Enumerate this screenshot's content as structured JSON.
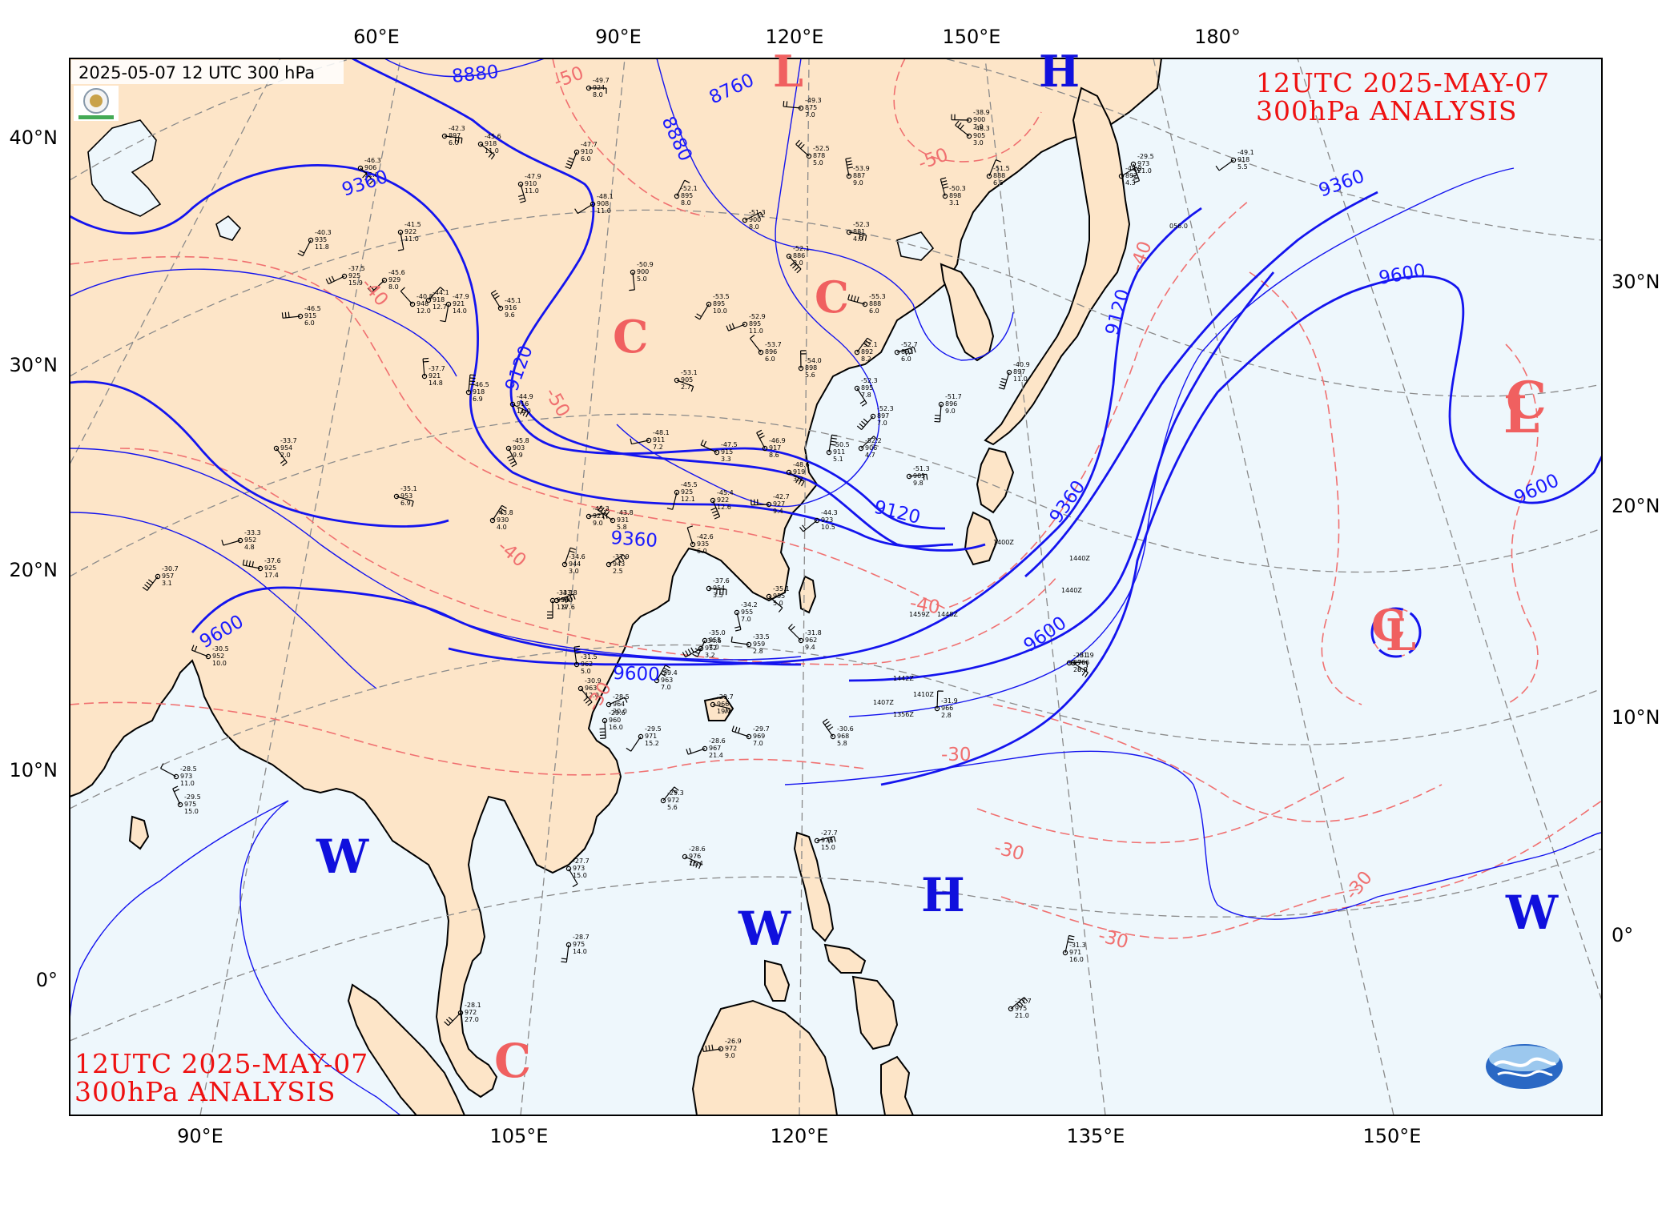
{
  "header": {
    "caption": "2025-05-07 12 UTC 300 hPa",
    "title_top_line1": "12UTC   2025-MAY-07",
    "title_top_line2": "300hPa ANALYSIS",
    "title_bottom_line1": "12UTC  2025-MAY-07",
    "title_bottom_line2": "300hPa ANALYSIS"
  },
  "grid_labels": {
    "top": [
      "60°E",
      "90°E",
      "120°E",
      "150°E",
      "180°"
    ],
    "bottom": [
      "90°E",
      "105°E",
      "120°E",
      "135°E",
      "150°E"
    ],
    "left": [
      "40°N",
      "30°N",
      "20°N",
      "10°N",
      "0°"
    ],
    "right": [
      "30°N",
      "20°N",
      "10°N",
      "0°"
    ]
  },
  "height_contour_labels": [
    "8880",
    "8880",
    "8760",
    "9360",
    "9360",
    "9360",
    "9120",
    "9120",
    "9120",
    "9600",
    "9600",
    "9600",
    "9600",
    "9600",
    "9360",
    "9600"
  ],
  "temperature_contour_labels": [
    "-50",
    "-50",
    "-50",
    "-40",
    "-40",
    "-40",
    "-40",
    "-30",
    "-30",
    "-30",
    "-30",
    "-30"
  ],
  "pressure_systems": [
    {
      "letter": "L",
      "color": "#f06060"
    },
    {
      "letter": "H",
      "color": "#1010dd"
    },
    {
      "letter": "C",
      "color": "#f06060"
    },
    {
      "letter": "C",
      "color": "#f06060"
    },
    {
      "letter": "L",
      "color": "#f06060"
    },
    {
      "letter": "C",
      "color": "#f06060"
    },
    {
      "letter": "C",
      "color": "#f06060"
    },
    {
      "letter": "L",
      "color": "#f06060"
    },
    {
      "letter": "W",
      "color": "#1010dd"
    },
    {
      "letter": "H",
      "color": "#1010dd"
    },
    {
      "letter": "W",
      "color": "#1010dd"
    },
    {
      "letter": "W",
      "color": "#1010dd"
    },
    {
      "letter": "C",
      "color": "#f06060"
    }
  ],
  "stations": [
    {
      "t": "-49.7",
      "h": "924",
      "w": "8.0"
    },
    {
      "t": "-45.6",
      "h": "918",
      "w": "11.0"
    },
    {
      "t": "-47.9",
      "h": "910",
      "w": "11.0"
    },
    {
      "t": "-47.7",
      "h": "910",
      "w": "6.0"
    },
    {
      "t": "-48.1",
      "h": "908",
      "w": "11.0"
    },
    {
      "t": "-49.3",
      "h": "875",
      "w": "7.0"
    },
    {
      "t": "-52.5",
      "h": "878",
      "w": "5.0"
    },
    {
      "t": "-53.9",
      "h": "887",
      "w": "9.0"
    },
    {
      "t": "-52.1",
      "h": "895",
      "w": "8.0"
    },
    {
      "t": "-51.3",
      "h": "900",
      "w": "8.0"
    },
    {
      "t": "-52.3",
      "h": "881",
      "w": "4.9"
    },
    {
      "t": "-52.1",
      "h": "886",
      "w": "8.0"
    },
    {
      "t": "-50.9",
      "h": "900",
      "w": "5.0"
    },
    {
      "t": "-53.5",
      "h": "895",
      "w": "10.0"
    },
    {
      "t": "-52.9",
      "h": "895",
      "w": "11.0"
    },
    {
      "t": "-55.3",
      "h": "888",
      "w": "6.0"
    },
    {
      "t": "-53.7",
      "h": "896",
      "w": "6.0"
    },
    {
      "t": "-54.0",
      "h": "898",
      "w": "5.6"
    },
    {
      "t": "-52.1",
      "h": "892",
      "w": "8.2"
    },
    {
      "t": "-52.7",
      "h": "892",
      "w": "6.0"
    },
    {
      "t": "-53.1",
      "h": "905",
      "w": "2.7"
    },
    {
      "t": "-52.3",
      "h": "895",
      "w": "7.8"
    },
    {
      "t": "-51.7",
      "h": "896",
      "w": "9.0"
    },
    {
      "t": "-52.3",
      "h": "897",
      "w": "7.0"
    },
    {
      "t": "-48.1",
      "h": "911",
      "w": "7.2"
    },
    {
      "t": "-47.5",
      "h": "915",
      "w": "3.3"
    },
    {
      "t": "-46.9",
      "h": "917",
      "w": "8.6"
    },
    {
      "t": "-50.5",
      "h": "911",
      "w": "5.1"
    },
    {
      "t": "-52.2",
      "h": "906",
      "w": "4.7"
    },
    {
      "t": "-51.3",
      "h": "905",
      "w": "9.8"
    },
    {
      "t": "-48.6",
      "h": "919",
      "w": "3.2"
    },
    {
      "t": "-45.4",
      "h": "922",
      "w": "12.6"
    },
    {
      "t": "-45.5",
      "h": "925",
      "w": "12.1"
    },
    {
      "t": "-44.3",
      "h": "923",
      "w": "10.5"
    },
    {
      "t": "-42.7",
      "h": "927",
      "w": "9.4"
    },
    {
      "t": "-43.8",
      "h": "931",
      "w": "5.8"
    },
    {
      "t": "-42.6",
      "h": "935",
      "w": "6.0"
    },
    {
      "t": "-34.6",
      "h": "944",
      "w": "3.0"
    },
    {
      "t": "-37.9",
      "h": "943",
      "w": "2.5"
    },
    {
      "t": "-37.6",
      "h": "954",
      "w": "3.5"
    },
    {
      "t": "-35.1",
      "h": "955",
      "w": "5.0"
    },
    {
      "t": "-34.2",
      "h": "955",
      "w": "7.0"
    },
    {
      "t": "-35.0",
      "h": "955",
      "w": "7.0"
    },
    {
      "t": "-34.6",
      "h": "952",
      "w": "3.2"
    },
    {
      "t": "-33.5",
      "h": "959",
      "w": "2.8"
    },
    {
      "t": "-31.8",
      "h": "962",
      "w": "9.4"
    },
    {
      "t": "-31.5",
      "h": "962",
      "w": "5.0"
    },
    {
      "t": "-29.4",
      "h": "963",
      "w": "7.0"
    },
    {
      "t": "-28.5",
      "h": "964",
      "w": "20.0"
    },
    {
      "t": "-29.7",
      "h": "966",
      "w": "19.0"
    },
    {
      "t": "-30.9",
      "h": "963",
      "w": "12.0"
    },
    {
      "t": "-29.6",
      "h": "960",
      "w": "16.0"
    },
    {
      "t": "-29.5",
      "h": "971",
      "w": "15.2"
    },
    {
      "t": "-28.6",
      "h": "967",
      "w": "21.4"
    },
    {
      "t": "-29.7",
      "h": "969",
      "w": "7.0"
    },
    {
      "t": "-30.6",
      "h": "968",
      "w": "5.8"
    },
    {
      "t": "-31.9",
      "h": "966",
      "w": "2.8"
    },
    {
      "t": "-29.3",
      "h": "972",
      "w": "5.6"
    },
    {
      "t": "-27.7",
      "h": "976",
      "w": "15.0"
    },
    {
      "t": "-28.6",
      "h": "976",
      "w": "16.4"
    },
    {
      "t": "-27.7",
      "h": "973",
      "w": "15.0"
    },
    {
      "t": "-28.7",
      "h": "975",
      "w": "14.0"
    },
    {
      "t": "-28.1",
      "h": "972",
      "w": "27.0"
    },
    {
      "t": "-26.9",
      "h": "972",
      "w": "9.0"
    },
    {
      "t": "-28.5",
      "h": "973",
      "w": "11.0"
    },
    {
      "t": "-29.5",
      "h": "975",
      "w": "15.0"
    },
    {
      "t": "-31.3",
      "h": "971",
      "w": "16.0"
    },
    {
      "t": "-27.7",
      "h": "975",
      "w": "21.0"
    },
    {
      "t": "-28.1",
      "h": "976",
      "w": "20.0"
    },
    {
      "t": "-31.9",
      "h": "966",
      "w": "8.9"
    },
    {
      "t": "-29.5",
      "h": "973",
      "w": "21.0"
    },
    {
      "t": "-40.9",
      "h": "897",
      "w": "11.0"
    },
    {
      "t": "-49.1",
      "h": "918",
      "w": "5.5"
    },
    {
      "t": "-38.9",
      "h": "900",
      "w": "7.0"
    },
    {
      "t": "-48.3",
      "h": "905",
      "w": "3.0"
    },
    {
      "t": "-50.3",
      "h": "898",
      "w": "3.1"
    },
    {
      "t": "-51.5",
      "h": "888",
      "w": "6.5"
    },
    {
      "t": "-49.9",
      "h": "892",
      "w": "4.3"
    },
    {
      "t": "-42.3",
      "h": "897",
      "w": "6.0"
    },
    {
      "t": "-46.3",
      "h": "906",
      "w": "12.0"
    },
    {
      "t": "-41.5",
      "h": "922",
      "w": "11.0"
    },
    {
      "t": "-40.3",
      "h": "935",
      "w": "11.8"
    },
    {
      "t": "-37.5",
      "h": "925",
      "w": "15.9"
    },
    {
      "t": "-37.6",
      "h": "925",
      "w": "17.4"
    },
    {
      "t": "-40.8",
      "h": "948",
      "w": "12.0"
    },
    {
      "t": "-37.7",
      "h": "921",
      "w": "14.8"
    },
    {
      "t": "-43.8",
      "h": "930",
      "w": "4.0"
    },
    {
      "t": "-43.8",
      "h": "940",
      "w": "17.6"
    },
    {
      "t": "-35.1",
      "h": "953",
      "w": "6.9"
    },
    {
      "t": "-33.7",
      "h": "954",
      "w": "2.0"
    },
    {
      "t": "-33.1",
      "h": "955",
      "w": "1.9"
    },
    {
      "t": "-30.7",
      "h": "957",
      "w": "3.1"
    },
    {
      "t": "-33.3",
      "h": "952",
      "w": "4.8"
    },
    {
      "t": "-30.5",
      "h": "952",
      "w": "10.0"
    },
    {
      "t": "-45.1",
      "h": "916",
      "w": "9.6"
    },
    {
      "t": "-46.5",
      "h": "918",
      "w": "6.9"
    },
    {
      "t": "-44.1",
      "h": "918",
      "w": "12.7"
    },
    {
      "t": "-43.3",
      "h": "921",
      "w": "9.0"
    },
    {
      "t": "-44.9",
      "h": "916",
      "w": "11.0"
    },
    {
      "t": "-45.8",
      "h": "903",
      "w": "9.9"
    },
    {
      "t": "-47.9",
      "h": "921",
      "w": "14.0"
    },
    {
      "t": "-45.6",
      "h": "929",
      "w": "8.0"
    },
    {
      "t": "-46.5",
      "h": "915",
      "w": "6.0"
    }
  ],
  "misc_station_ids": [
    "1440Z",
    "1440Z",
    "1407Z",
    "1356Z",
    "1410Z",
    "1459Z",
    "1448Z",
    "1400Z",
    "056.0",
    "1442Z"
  ]
}
